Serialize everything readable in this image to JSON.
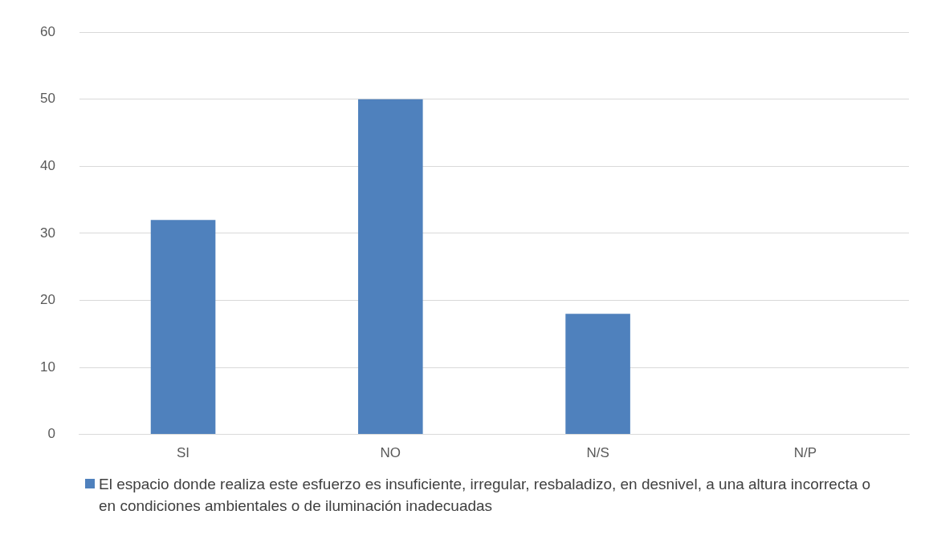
{
  "chart_data": {
    "type": "bar",
    "categories": [
      "SI",
      "NO",
      "N/S",
      "N/P"
    ],
    "series": [
      {
        "name": "El espacio donde realiza este esfuerzo es insuficiente, irregular, resbaladizo, en desnivel, a una altura incorrecta o en condiciones ambientales o de iluminación inadecuadas",
        "color": "#4f81bd",
        "values": [
          32,
          50,
          18,
          0
        ]
      }
    ],
    "ylim": [
      0,
      60
    ],
    "yticks": [
      0,
      10,
      20,
      30,
      40,
      50,
      60
    ],
    "grid": "y",
    "legend": "bottom"
  }
}
